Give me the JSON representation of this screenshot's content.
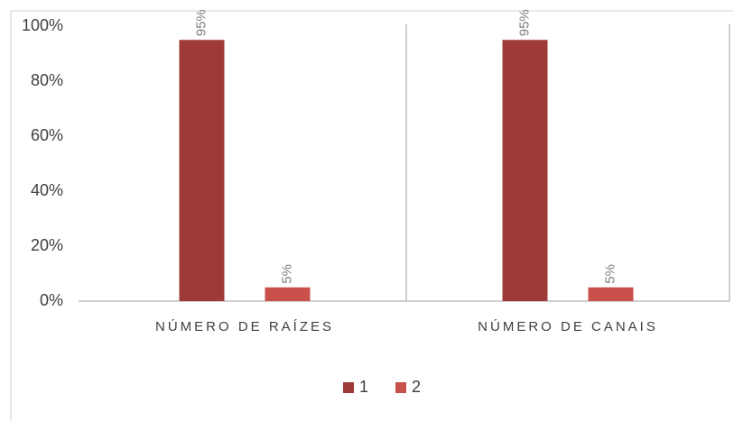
{
  "chart_data": {
    "type": "bar",
    "categories": [
      "NÚMERO DE RAÍZES",
      "NÚMERO DE CANAIS"
    ],
    "series": [
      {
        "name": "1",
        "color": "#9e3b37",
        "values": [
          95,
          95
        ],
        "value_labels": [
          "95%",
          "95%"
        ]
      },
      {
        "name": "2",
        "color": "#c9504b",
        "values": [
          5,
          5
        ],
        "value_labels": [
          "5%",
          "5%"
        ]
      }
    ],
    "ylim": [
      0,
      100
    ],
    "yticks": [
      {
        "value": 0,
        "label": "0%"
      },
      {
        "value": 20,
        "label": "20%"
      },
      {
        "value": 40,
        "label": "40%"
      },
      {
        "value": 60,
        "label": "60%"
      },
      {
        "value": 80,
        "label": "80%"
      },
      {
        "value": 100,
        "label": "100%"
      }
    ],
    "legend": "bottom"
  }
}
